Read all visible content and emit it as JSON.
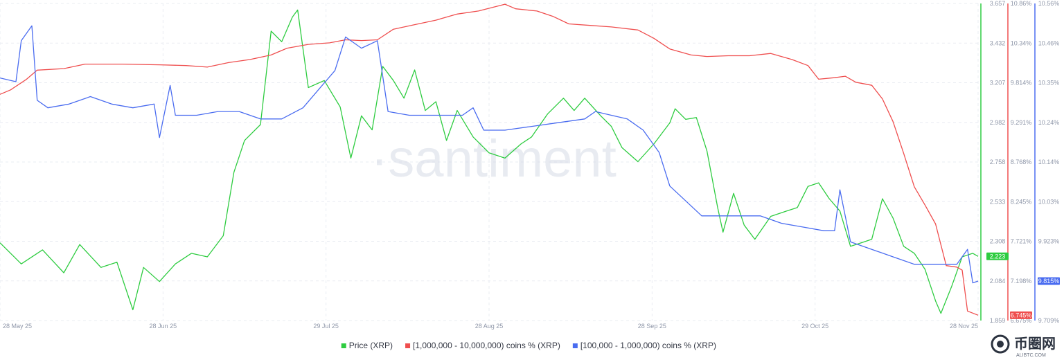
{
  "watermark": "·santiment",
  "brand": {
    "name": "币圈网",
    "site": "ALIBTC.COM"
  },
  "colors": {
    "price": "#2ecc40",
    "whale_large": "#ef4e4e",
    "whale_mid": "#4a6cf0",
    "grid": "#e9ecf2"
  },
  "chart_data": {
    "type": "line",
    "x_ticks": [
      "28 May 25",
      "28 Jun 25",
      "29 Jul 25",
      "28 Aug 25",
      "28 Sep 25",
      "29 Oct 25",
      "28 Nov 25"
    ],
    "x_range": [
      "2025-05-28",
      "2025-11-28"
    ],
    "axes": {
      "price": {
        "ticks": [
          "3.657",
          "3.432",
          "3.207",
          "2.982",
          "2.758",
          "2.533",
          "2.308",
          "2.084",
          "1.859"
        ],
        "range": [
          1.859,
          3.657
        ]
      },
      "large": {
        "ticks": [
          "10.86%",
          "10.34%",
          "9.814%",
          "9.291%",
          "8.768%",
          "8.245%",
          "7.721%",
          "7.198%",
          "6.675%"
        ],
        "range": [
          6.675,
          10.86
        ]
      },
      "mid": {
        "ticks": [
          "10.56%",
          "10.46%",
          "10.35%",
          "10.24%",
          "10.14%",
          "10.03%",
          "9.923%",
          "9.815%",
          "9.709%"
        ],
        "range": [
          9.709,
          10.56
        ]
      }
    },
    "series": [
      {
        "name": "Price (XRP)",
        "key": "price",
        "axis": "price",
        "color": "#2ecc40",
        "last_label": "2.223",
        "points": [
          [
            "2025-05-28",
            2.3
          ],
          [
            "2025-06-01",
            2.18
          ],
          [
            "2025-06-05",
            2.26
          ],
          [
            "2025-06-09",
            2.13
          ],
          [
            "2025-06-12",
            2.29
          ],
          [
            "2025-06-16",
            2.16
          ],
          [
            "2025-06-19",
            2.19
          ],
          [
            "2025-06-22",
            1.92
          ],
          [
            "2025-06-24",
            2.16
          ],
          [
            "2025-06-27",
            2.08
          ],
          [
            "2025-06-30",
            2.18
          ],
          [
            "2025-07-03",
            2.24
          ],
          [
            "2025-07-06",
            2.22
          ],
          [
            "2025-07-09",
            2.34
          ],
          [
            "2025-07-11",
            2.7
          ],
          [
            "2025-07-13",
            2.88
          ],
          [
            "2025-07-16",
            2.97
          ],
          [
            "2025-07-18",
            3.5
          ],
          [
            "2025-07-20",
            3.44
          ],
          [
            "2025-07-22",
            3.58
          ],
          [
            "2025-07-23",
            3.62
          ],
          [
            "2025-07-25",
            3.18
          ],
          [
            "2025-07-28",
            3.22
          ],
          [
            "2025-07-31",
            3.07
          ],
          [
            "2025-08-02",
            2.78
          ],
          [
            "2025-08-04",
            3.02
          ],
          [
            "2025-08-06",
            2.94
          ],
          [
            "2025-08-08",
            3.3
          ],
          [
            "2025-08-10",
            3.22
          ],
          [
            "2025-08-12",
            3.12
          ],
          [
            "2025-08-14",
            3.28
          ],
          [
            "2025-08-16",
            3.05
          ],
          [
            "2025-08-18",
            3.1
          ],
          [
            "2025-08-20",
            2.88
          ],
          [
            "2025-08-22",
            3.05
          ],
          [
            "2025-08-25",
            2.9
          ],
          [
            "2025-08-28",
            2.81
          ],
          [
            "2025-08-31",
            2.78
          ],
          [
            "2025-09-03",
            2.86
          ],
          [
            "2025-09-05",
            2.9
          ],
          [
            "2025-09-08",
            3.03
          ],
          [
            "2025-09-11",
            3.12
          ],
          [
            "2025-09-13",
            3.05
          ],
          [
            "2025-09-15",
            3.12
          ],
          [
            "2025-09-18",
            3.02
          ],
          [
            "2025-09-20",
            2.96
          ],
          [
            "2025-09-22",
            2.84
          ],
          [
            "2025-09-25",
            2.76
          ],
          [
            "2025-09-28",
            2.86
          ],
          [
            "2025-10-01",
            2.98
          ],
          [
            "2025-10-02",
            3.06
          ],
          [
            "2025-10-04",
            3.0
          ],
          [
            "2025-10-06",
            3.01
          ],
          [
            "2025-10-08",
            2.82
          ],
          [
            "2025-10-10",
            2.5
          ],
          [
            "2025-10-11",
            2.36
          ],
          [
            "2025-10-13",
            2.58
          ],
          [
            "2025-10-15",
            2.4
          ],
          [
            "2025-10-17",
            2.32
          ],
          [
            "2025-10-20",
            2.45
          ],
          [
            "2025-10-23",
            2.48
          ],
          [
            "2025-10-25",
            2.5
          ],
          [
            "2025-10-27",
            2.62
          ],
          [
            "2025-10-29",
            2.64
          ],
          [
            "2025-10-31",
            2.55
          ],
          [
            "2025-11-02",
            2.48
          ],
          [
            "2025-11-04",
            2.28
          ],
          [
            "2025-11-06",
            2.3
          ],
          [
            "2025-11-08",
            2.32
          ],
          [
            "2025-11-10",
            2.55
          ],
          [
            "2025-11-12",
            2.44
          ],
          [
            "2025-11-14",
            2.28
          ],
          [
            "2025-11-16",
            2.24
          ],
          [
            "2025-11-18",
            2.15
          ],
          [
            "2025-11-20",
            1.97
          ],
          [
            "2025-11-21",
            1.9
          ],
          [
            "2025-11-23",
            2.05
          ],
          [
            "2025-11-25",
            2.22
          ],
          [
            "2025-11-27",
            2.24
          ],
          [
            "2025-11-28",
            2.223
          ]
        ]
      },
      {
        "name": "[1,000,000 - 10,000,000) coins % (XRP)",
        "key": "large",
        "axis": "large",
        "color": "#ef4e4e",
        "last_label": "6.745%",
        "points": [
          [
            "2025-05-28",
            9.66
          ],
          [
            "2025-05-30",
            9.72
          ],
          [
            "2025-06-02",
            9.86
          ],
          [
            "2025-06-04",
            9.98
          ],
          [
            "2025-06-09",
            10.0
          ],
          [
            "2025-06-13",
            10.06
          ],
          [
            "2025-06-20",
            10.06
          ],
          [
            "2025-06-27",
            10.05
          ],
          [
            "2025-07-02",
            10.04
          ],
          [
            "2025-07-06",
            10.02
          ],
          [
            "2025-07-10",
            10.08
          ],
          [
            "2025-07-14",
            10.12
          ],
          [
            "2025-07-18",
            10.18
          ],
          [
            "2025-07-21",
            10.27
          ],
          [
            "2025-07-25",
            10.32
          ],
          [
            "2025-07-29",
            10.34
          ],
          [
            "2025-08-01",
            10.38
          ],
          [
            "2025-08-04",
            10.37
          ],
          [
            "2025-08-07",
            10.38
          ],
          [
            "2025-08-10",
            10.52
          ],
          [
            "2025-08-14",
            10.58
          ],
          [
            "2025-08-18",
            10.64
          ],
          [
            "2025-08-22",
            10.72
          ],
          [
            "2025-08-26",
            10.76
          ],
          [
            "2025-08-31",
            10.85
          ],
          [
            "2025-09-02",
            10.79
          ],
          [
            "2025-09-06",
            10.76
          ],
          [
            "2025-09-09",
            10.69
          ],
          [
            "2025-09-12",
            10.59
          ],
          [
            "2025-09-16",
            10.57
          ],
          [
            "2025-09-20",
            10.55
          ],
          [
            "2025-09-25",
            10.51
          ],
          [
            "2025-09-28",
            10.4
          ],
          [
            "2025-10-01",
            10.26
          ],
          [
            "2025-10-05",
            10.18
          ],
          [
            "2025-10-08",
            10.16
          ],
          [
            "2025-10-12",
            10.17
          ],
          [
            "2025-10-16",
            10.17
          ],
          [
            "2025-10-20",
            10.2
          ],
          [
            "2025-10-24",
            10.12
          ],
          [
            "2025-10-27",
            10.04
          ],
          [
            "2025-10-29",
            9.86
          ],
          [
            "2025-11-01",
            9.88
          ],
          [
            "2025-11-03",
            9.9
          ],
          [
            "2025-11-05",
            9.82
          ],
          [
            "2025-11-08",
            9.78
          ],
          [
            "2025-11-10",
            9.6
          ],
          [
            "2025-11-12",
            9.3
          ],
          [
            "2025-11-14",
            8.88
          ],
          [
            "2025-11-16",
            8.44
          ],
          [
            "2025-11-18",
            8.2
          ],
          [
            "2025-11-20",
            7.95
          ],
          [
            "2025-11-22",
            7.4
          ],
          [
            "2025-11-24",
            7.38
          ],
          [
            "2025-11-25",
            7.34
          ],
          [
            "2025-11-26",
            6.8
          ],
          [
            "2025-11-28",
            6.745
          ]
        ]
      },
      {
        "name": "[100,000  - 1,000,000) coins % (XRP)",
        "key": "mid",
        "axis": "mid",
        "color": "#4a6cf0",
        "last_label": "9.815%",
        "points": [
          [
            "2025-05-28",
            10.36
          ],
          [
            "2025-05-31",
            10.35
          ],
          [
            "2025-06-01",
            10.46
          ],
          [
            "2025-06-03",
            10.5
          ],
          [
            "2025-06-04",
            10.3
          ],
          [
            "2025-06-06",
            10.28
          ],
          [
            "2025-06-10",
            10.29
          ],
          [
            "2025-06-14",
            10.31
          ],
          [
            "2025-06-18",
            10.29
          ],
          [
            "2025-06-22",
            10.28
          ],
          [
            "2025-06-26",
            10.29
          ],
          [
            "2025-06-27",
            10.2
          ],
          [
            "2025-06-29",
            10.34
          ],
          [
            "2025-06-30",
            10.26
          ],
          [
            "2025-07-04",
            10.26
          ],
          [
            "2025-07-08",
            10.27
          ],
          [
            "2025-07-12",
            10.27
          ],
          [
            "2025-07-16",
            10.25
          ],
          [
            "2025-07-20",
            10.25
          ],
          [
            "2025-07-24",
            10.28
          ],
          [
            "2025-07-27",
            10.33
          ],
          [
            "2025-07-30",
            10.38
          ],
          [
            "2025-08-01",
            10.47
          ],
          [
            "2025-08-04",
            10.44
          ],
          [
            "2025-08-07",
            10.46
          ],
          [
            "2025-08-09",
            10.27
          ],
          [
            "2025-08-13",
            10.26
          ],
          [
            "2025-08-18",
            10.26
          ],
          [
            "2025-08-23",
            10.26
          ],
          [
            "2025-08-25",
            10.28
          ],
          [
            "2025-08-27",
            10.22
          ],
          [
            "2025-08-31",
            10.22
          ],
          [
            "2025-09-05",
            10.23
          ],
          [
            "2025-09-10",
            10.24
          ],
          [
            "2025-09-15",
            10.25
          ],
          [
            "2025-09-17",
            10.27
          ],
          [
            "2025-09-20",
            10.26
          ],
          [
            "2025-09-23",
            10.25
          ],
          [
            "2025-09-26",
            10.22
          ],
          [
            "2025-09-29",
            10.16
          ],
          [
            "2025-10-01",
            10.07
          ],
          [
            "2025-10-04",
            10.03
          ],
          [
            "2025-10-07",
            9.99
          ],
          [
            "2025-10-10",
            9.99
          ],
          [
            "2025-10-14",
            9.99
          ],
          [
            "2025-10-18",
            9.99
          ],
          [
            "2025-10-22",
            9.97
          ],
          [
            "2025-10-26",
            9.96
          ],
          [
            "2025-10-30",
            9.95
          ],
          [
            "2025-11-01",
            9.95
          ],
          [
            "2025-11-02",
            10.06
          ],
          [
            "2025-11-04",
            9.92
          ],
          [
            "2025-11-08",
            9.9
          ],
          [
            "2025-11-12",
            9.88
          ],
          [
            "2025-11-16",
            9.86
          ],
          [
            "2025-11-20",
            9.86
          ],
          [
            "2025-11-24",
            9.86
          ],
          [
            "2025-11-26",
            9.9
          ],
          [
            "2025-11-27",
            9.81
          ],
          [
            "2025-11-28",
            9.815
          ]
        ]
      }
    ],
    "legend": {
      "position": "bottom-center"
    },
    "grid": true
  }
}
